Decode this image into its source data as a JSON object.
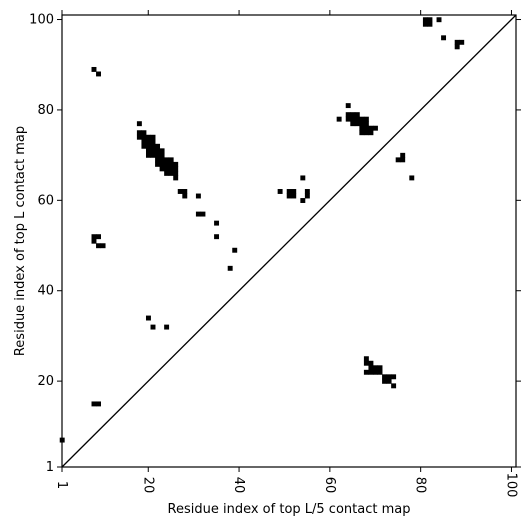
{
  "chart_data": {
    "type": "heatmap",
    "xlabel": "Residue index of top L/5 contact map",
    "ylabel": "Residue index of top L contact map",
    "xlim": [
      1,
      101
    ],
    "ylim": [
      1,
      101
    ],
    "x_ticks": [
      {
        "value": 1,
        "label": "1"
      },
      {
        "value": 20,
        "label": "20"
      },
      {
        "value": 40,
        "label": "40"
      },
      {
        "value": 60,
        "label": "60"
      },
      {
        "value": 80,
        "label": "80"
      },
      {
        "value": 100,
        "label": "100"
      }
    ],
    "y_ticks": [
      {
        "value": 1,
        "label": "1"
      },
      {
        "value": 20,
        "label": "20"
      },
      {
        "value": 40,
        "label": "40"
      },
      {
        "value": 60,
        "label": "60"
      },
      {
        "value": 80,
        "label": "80"
      },
      {
        "value": 100,
        "label": "100"
      }
    ],
    "diagonal": true,
    "contact_color": "#000000",
    "upper_triangle_contacts": [
      [
        8,
        89
      ],
      [
        9,
        88
      ],
      [
        8,
        52
      ],
      [
        9,
        52
      ],
      [
        8,
        51
      ],
      [
        9,
        50
      ],
      [
        10,
        50
      ],
      [
        18,
        77
      ],
      [
        18,
        75
      ],
      [
        19,
        75
      ],
      [
        18,
        74
      ],
      [
        19,
        74
      ],
      [
        20,
        74
      ],
      [
        21,
        74
      ],
      [
        19,
        73
      ],
      [
        20,
        73
      ],
      [
        21,
        73
      ],
      [
        19,
        72
      ],
      [
        20,
        72
      ],
      [
        21,
        72
      ],
      [
        22,
        72
      ],
      [
        20,
        71
      ],
      [
        21,
        71
      ],
      [
        22,
        71
      ],
      [
        23,
        71
      ],
      [
        20,
        70
      ],
      [
        21,
        70
      ],
      [
        22,
        70
      ],
      [
        23,
        70
      ],
      [
        22,
        69
      ],
      [
        23,
        69
      ],
      [
        24,
        69
      ],
      [
        25,
        69
      ],
      [
        22,
        68
      ],
      [
        23,
        68
      ],
      [
        24,
        68
      ],
      [
        25,
        68
      ],
      [
        26,
        68
      ],
      [
        23,
        67
      ],
      [
        24,
        67
      ],
      [
        25,
        67
      ],
      [
        26,
        67
      ],
      [
        24,
        66
      ],
      [
        25,
        66
      ],
      [
        26,
        66
      ],
      [
        26,
        65
      ],
      [
        27,
        62
      ],
      [
        28,
        62
      ],
      [
        28,
        61
      ],
      [
        31,
        61
      ],
      [
        31,
        57
      ],
      [
        32,
        57
      ],
      [
        35,
        55
      ],
      [
        35,
        52
      ],
      [
        39,
        49
      ],
      [
        38,
        45
      ],
      [
        49,
        62
      ],
      [
        51,
        62
      ],
      [
        52,
        62
      ],
      [
        51,
        61
      ],
      [
        52,
        61
      ],
      [
        54,
        65
      ],
      [
        55,
        62
      ],
      [
        55,
        61
      ],
      [
        54,
        60
      ],
      [
        62,
        78
      ],
      [
        64,
        81
      ],
      [
        64,
        79
      ],
      [
        65,
        79
      ],
      [
        66,
        79
      ],
      [
        64,
        78
      ],
      [
        65,
        78
      ],
      [
        66,
        78
      ],
      [
        67,
        78
      ],
      [
        68,
        78
      ],
      [
        65,
        77
      ],
      [
        66,
        77
      ],
      [
        67,
        77
      ],
      [
        68,
        77
      ],
      [
        67,
        76
      ],
      [
        68,
        76
      ],
      [
        69,
        76
      ],
      [
        70,
        76
      ],
      [
        67,
        75
      ],
      [
        68,
        75
      ],
      [
        69,
        75
      ],
      [
        75,
        69
      ],
      [
        76,
        69
      ],
      [
        76,
        70
      ],
      [
        78,
        65
      ],
      [
        81,
        100
      ],
      [
        82,
        100
      ],
      [
        81,
        99
      ],
      [
        82,
        99
      ],
      [
        84,
        100
      ],
      [
        85,
        96
      ],
      [
        88,
        95
      ],
      [
        89,
        95
      ],
      [
        88,
        94
      ]
    ],
    "lower_triangle_contacts": [
      [
        1,
        7
      ],
      [
        8,
        15
      ],
      [
        9,
        15
      ],
      [
        20,
        34
      ],
      [
        21,
        32
      ],
      [
        24,
        32
      ],
      [
        68,
        25
      ],
      [
        68,
        24
      ],
      [
        69,
        24
      ],
      [
        68,
        22
      ],
      [
        69,
        23
      ],
      [
        70,
        23
      ],
      [
        71,
        23
      ],
      [
        69,
        22
      ],
      [
        70,
        22
      ],
      [
        71,
        22
      ],
      [
        72,
        21
      ],
      [
        73,
        21
      ],
      [
        74,
        21
      ],
      [
        72,
        20
      ],
      [
        73,
        20
      ],
      [
        74,
        19
      ]
    ]
  }
}
